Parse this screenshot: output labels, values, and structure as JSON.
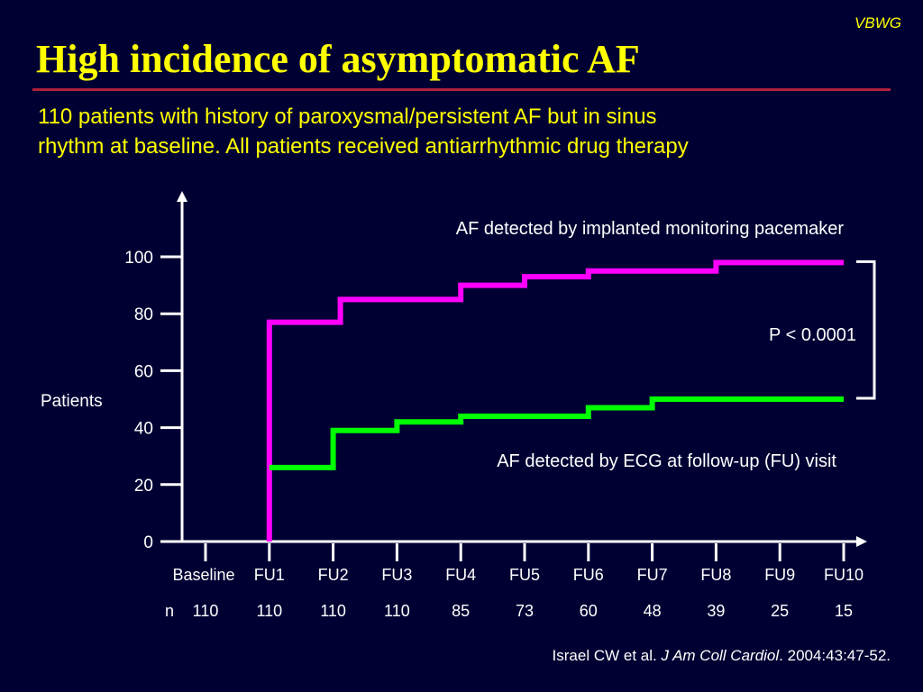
{
  "header": {
    "tag": "VBWG",
    "title": "High incidence of asymptomatic AF",
    "subtitle_line1": "110 patients with history of paroxysmal/persistent AF but in sinus",
    "subtitle_line2": "rhythm at baseline. All patients received antiarrhythmic drug therapy"
  },
  "chart_data": {
    "type": "line",
    "step": true,
    "ylabel": "Patients",
    "ylim": [
      0,
      100
    ],
    "yticks": [
      0,
      20,
      40,
      60,
      80,
      100
    ],
    "categories": [
      "Baseline",
      "FU1",
      "FU2",
      "FU3",
      "FU4",
      "FU5",
      "FU6",
      "FU7",
      "FU8",
      "FU9",
      "FU10"
    ],
    "n_label": "n",
    "n_values": [
      "110",
      "110",
      "110",
      "110",
      "85",
      "73",
      "60",
      "48",
      "39",
      "25",
      "15"
    ],
    "series": [
      {
        "name": "AF detected by implanted monitoring pacemaker",
        "color": "#ff00ff",
        "values": [
          0,
          77,
          85,
          85,
          90,
          93,
          95,
          95,
          98,
          98,
          98
        ]
      },
      {
        "name": "AF detected by ECG at follow-up (FU) visit",
        "color": "#00ff00",
        "values": [
          null,
          26,
          39,
          42,
          44,
          44,
          47,
          50,
          50,
          50,
          50
        ]
      }
    ],
    "annotation": "P < 0.0001"
  },
  "citation": {
    "authors": "Israel CW et al.",
    "journal": "J Am Coll Cardiol",
    "details": ". 2004:43:47-52."
  }
}
